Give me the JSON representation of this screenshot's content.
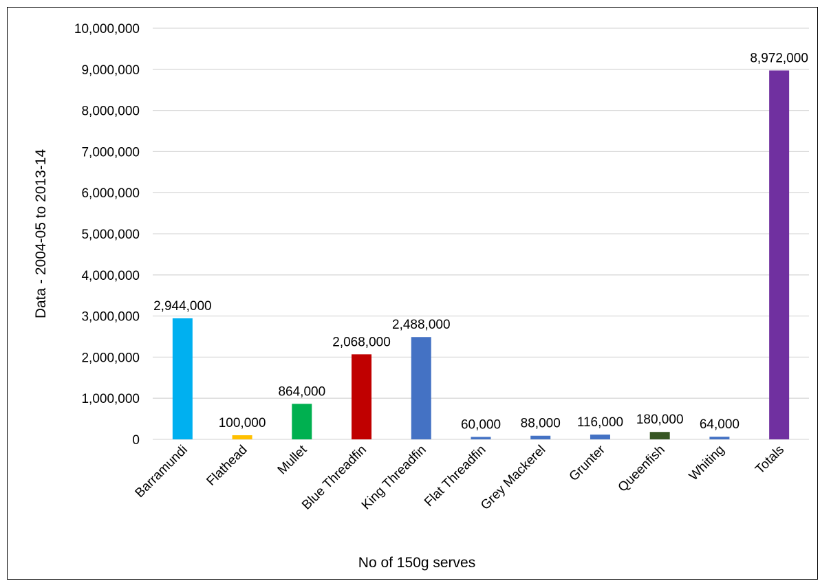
{
  "chart_data": {
    "type": "bar",
    "title": "",
    "xlabel": "No of 150g serves",
    "ylabel": "Data - 2004-05 to 2013-14",
    "ylim": [
      0,
      10000000
    ],
    "y_ticks": [
      "0",
      "1,000,000",
      "2,000,000",
      "3,000,000",
      "4,000,000",
      "5,000,000",
      "6,000,000",
      "7,000,000",
      "8,000,000",
      "9,000,000",
      "10,000,000"
    ],
    "grid": true,
    "legend": "none",
    "categories": [
      "Barramundi",
      "Flathead",
      "Mullet",
      "Blue Threadfin",
      "King Threadfin",
      "Flat Threadfin",
      "Grey Mackerel",
      "Grunter",
      "Queenfish",
      "Whiting",
      "Totals"
    ],
    "values": [
      2944000,
      100000,
      864000,
      2068000,
      2488000,
      60000,
      88000,
      116000,
      180000,
      64000,
      8972000
    ],
    "data_labels": [
      "2,944,000",
      "100,000",
      "864,000",
      "2,068,000",
      "2,488,000",
      "60,000",
      "88,000",
      "116,000",
      "180,000",
      "64,000",
      "8,972,000"
    ],
    "colors": [
      "#00B0F0",
      "#FFC000",
      "#00B050",
      "#C00000",
      "#4472C4",
      "#4472C4",
      "#4472C4",
      "#4472C4",
      "#375623",
      "#4472C4",
      "#7030A0"
    ]
  }
}
